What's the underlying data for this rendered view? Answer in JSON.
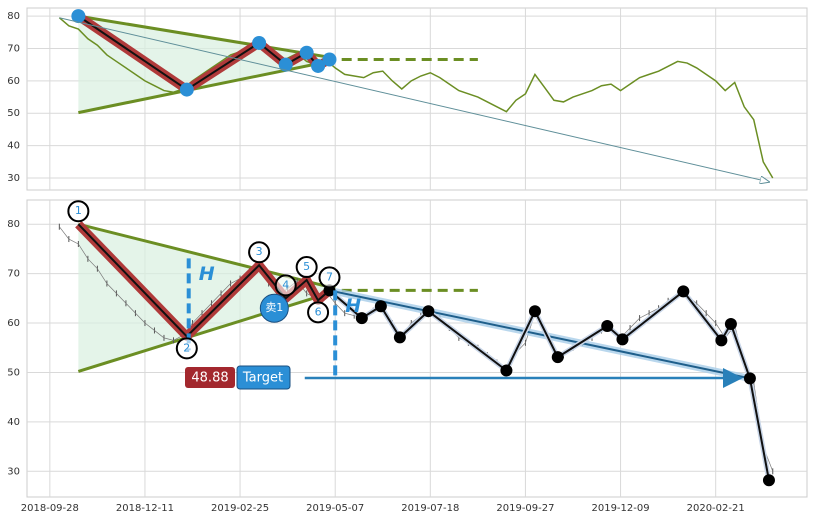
{
  "chart_data": {
    "type": "stock-pattern",
    "color": "#6b8e23",
    "x": [
      5,
      10,
      15,
      20,
      25,
      30,
      35,
      40,
      45,
      50,
      55,
      60,
      65,
      70,
      75,
      80,
      85,
      90,
      95,
      100,
      105,
      110,
      115,
      120,
      125,
      130,
      135,
      140,
      145,
      150,
      155,
      160,
      165,
      170,
      175,
      180,
      185,
      190,
      195,
      200,
      205,
      210,
      215,
      220,
      225,
      230,
      235,
      240,
      245,
      250,
      255,
      260,
      265,
      270,
      275,
      280,
      285,
      290,
      295,
      300,
      305,
      310,
      315,
      320,
      325,
      330,
      335,
      340,
      345,
      350,
      355,
      360,
      365,
      370,
      375,
      380
    ],
    "values": [
      79.5,
      77,
      76,
      73,
      71,
      68,
      66,
      64,
      62,
      60,
      58.5,
      57,
      56.5,
      57.5,
      60,
      62,
      64,
      66,
      68,
      69,
      70.5,
      71.5,
      68,
      65.5,
      67,
      68.5,
      66,
      65,
      66.5,
      64,
      62,
      61.5,
      61,
      62.5,
      63,
      60,
      57.5,
      60,
      61.5,
      62.5,
      61,
      59,
      57,
      56,
      55,
      53.5,
      52,
      50.5,
      54,
      56,
      62,
      58,
      54,
      53.5,
      55,
      56,
      57,
      58.5,
      59,
      57,
      59,
      61,
      62,
      63,
      64.5,
      66,
      65.5,
      64,
      62,
      60,
      57,
      59.5,
      52,
      48,
      35,
      30
    ],
    "xlim": [
      -12,
      398
    ],
    "xticks": [
      {
        "value": 0,
        "label": "2018-09-28"
      },
      {
        "value": 50,
        "label": "2018-12-11"
      },
      {
        "value": 100,
        "label": "2019-02-25"
      },
      {
        "value": 150,
        "label": "2019-05-07"
      },
      {
        "value": 200,
        "label": "2019-07-18"
      },
      {
        "value": 250,
        "label": "2019-09-27"
      },
      {
        "value": 300,
        "label": "2019-12-09"
      },
      {
        "value": 350,
        "label": "2020-02-21"
      }
    ],
    "panels": [
      {
        "ylim": [
          26.3,
          82.5
        ],
        "yticks": [
          30,
          40,
          50,
          60,
          70,
          80
        ]
      },
      {
        "ylim": [
          24.8,
          84.9
        ],
        "yticks": [
          30,
          40,
          50,
          60,
          70,
          80
        ]
      }
    ],
    "pattern": {
      "x": [
        15,
        72,
        110,
        124,
        135,
        141,
        147
      ],
      "values": [
        80,
        57.3,
        71.7,
        65,
        68.7,
        64.6,
        66.6
      ],
      "labels": [
        "1",
        "2",
        "3",
        "4",
        "5",
        "6",
        "7"
      ]
    },
    "wedge_upper": {
      "x": [
        15,
        150
      ],
      "values": [
        80,
        67
      ]
    },
    "wedge_lower": {
      "x": [
        15,
        150
      ],
      "values": [
        50.2,
        66.4
      ]
    },
    "resistance": {
      "x": [
        145,
        225
      ],
      "value": 66.6
    },
    "projection": {
      "x": [
        5,
        378
      ],
      "values": [
        79.5,
        28.8
      ]
    },
    "heights": [
      {
        "x": 73,
        "values": [
          73.1,
          54.5
        ],
        "label": "H"
      },
      {
        "x": 150,
        "values": [
          66.6,
          48.8
        ],
        "label": "H"
      }
    ],
    "zigzag": {
      "x": [
        147,
        164,
        174,
        184,
        199,
        240,
        255,
        267,
        293,
        301,
        333,
        353,
        358,
        368,
        378
      ],
      "values": [
        66.6,
        61,
        63.4,
        57.1,
        62.4,
        50.4,
        62.4,
        53.1,
        59.4,
        56.7,
        66.4,
        56.5,
        59.8,
        48.8,
        28.2
      ]
    },
    "trend": {
      "x": [
        147,
        368
      ],
      "values": [
        66.6,
        48.8
      ]
    },
    "target": {
      "x": [
        134,
        363
      ],
      "value": 48.88,
      "value_label": "48.88",
      "text": "Target"
    },
    "signal": {
      "x": 118,
      "value": 63,
      "label": "卖1"
    }
  }
}
